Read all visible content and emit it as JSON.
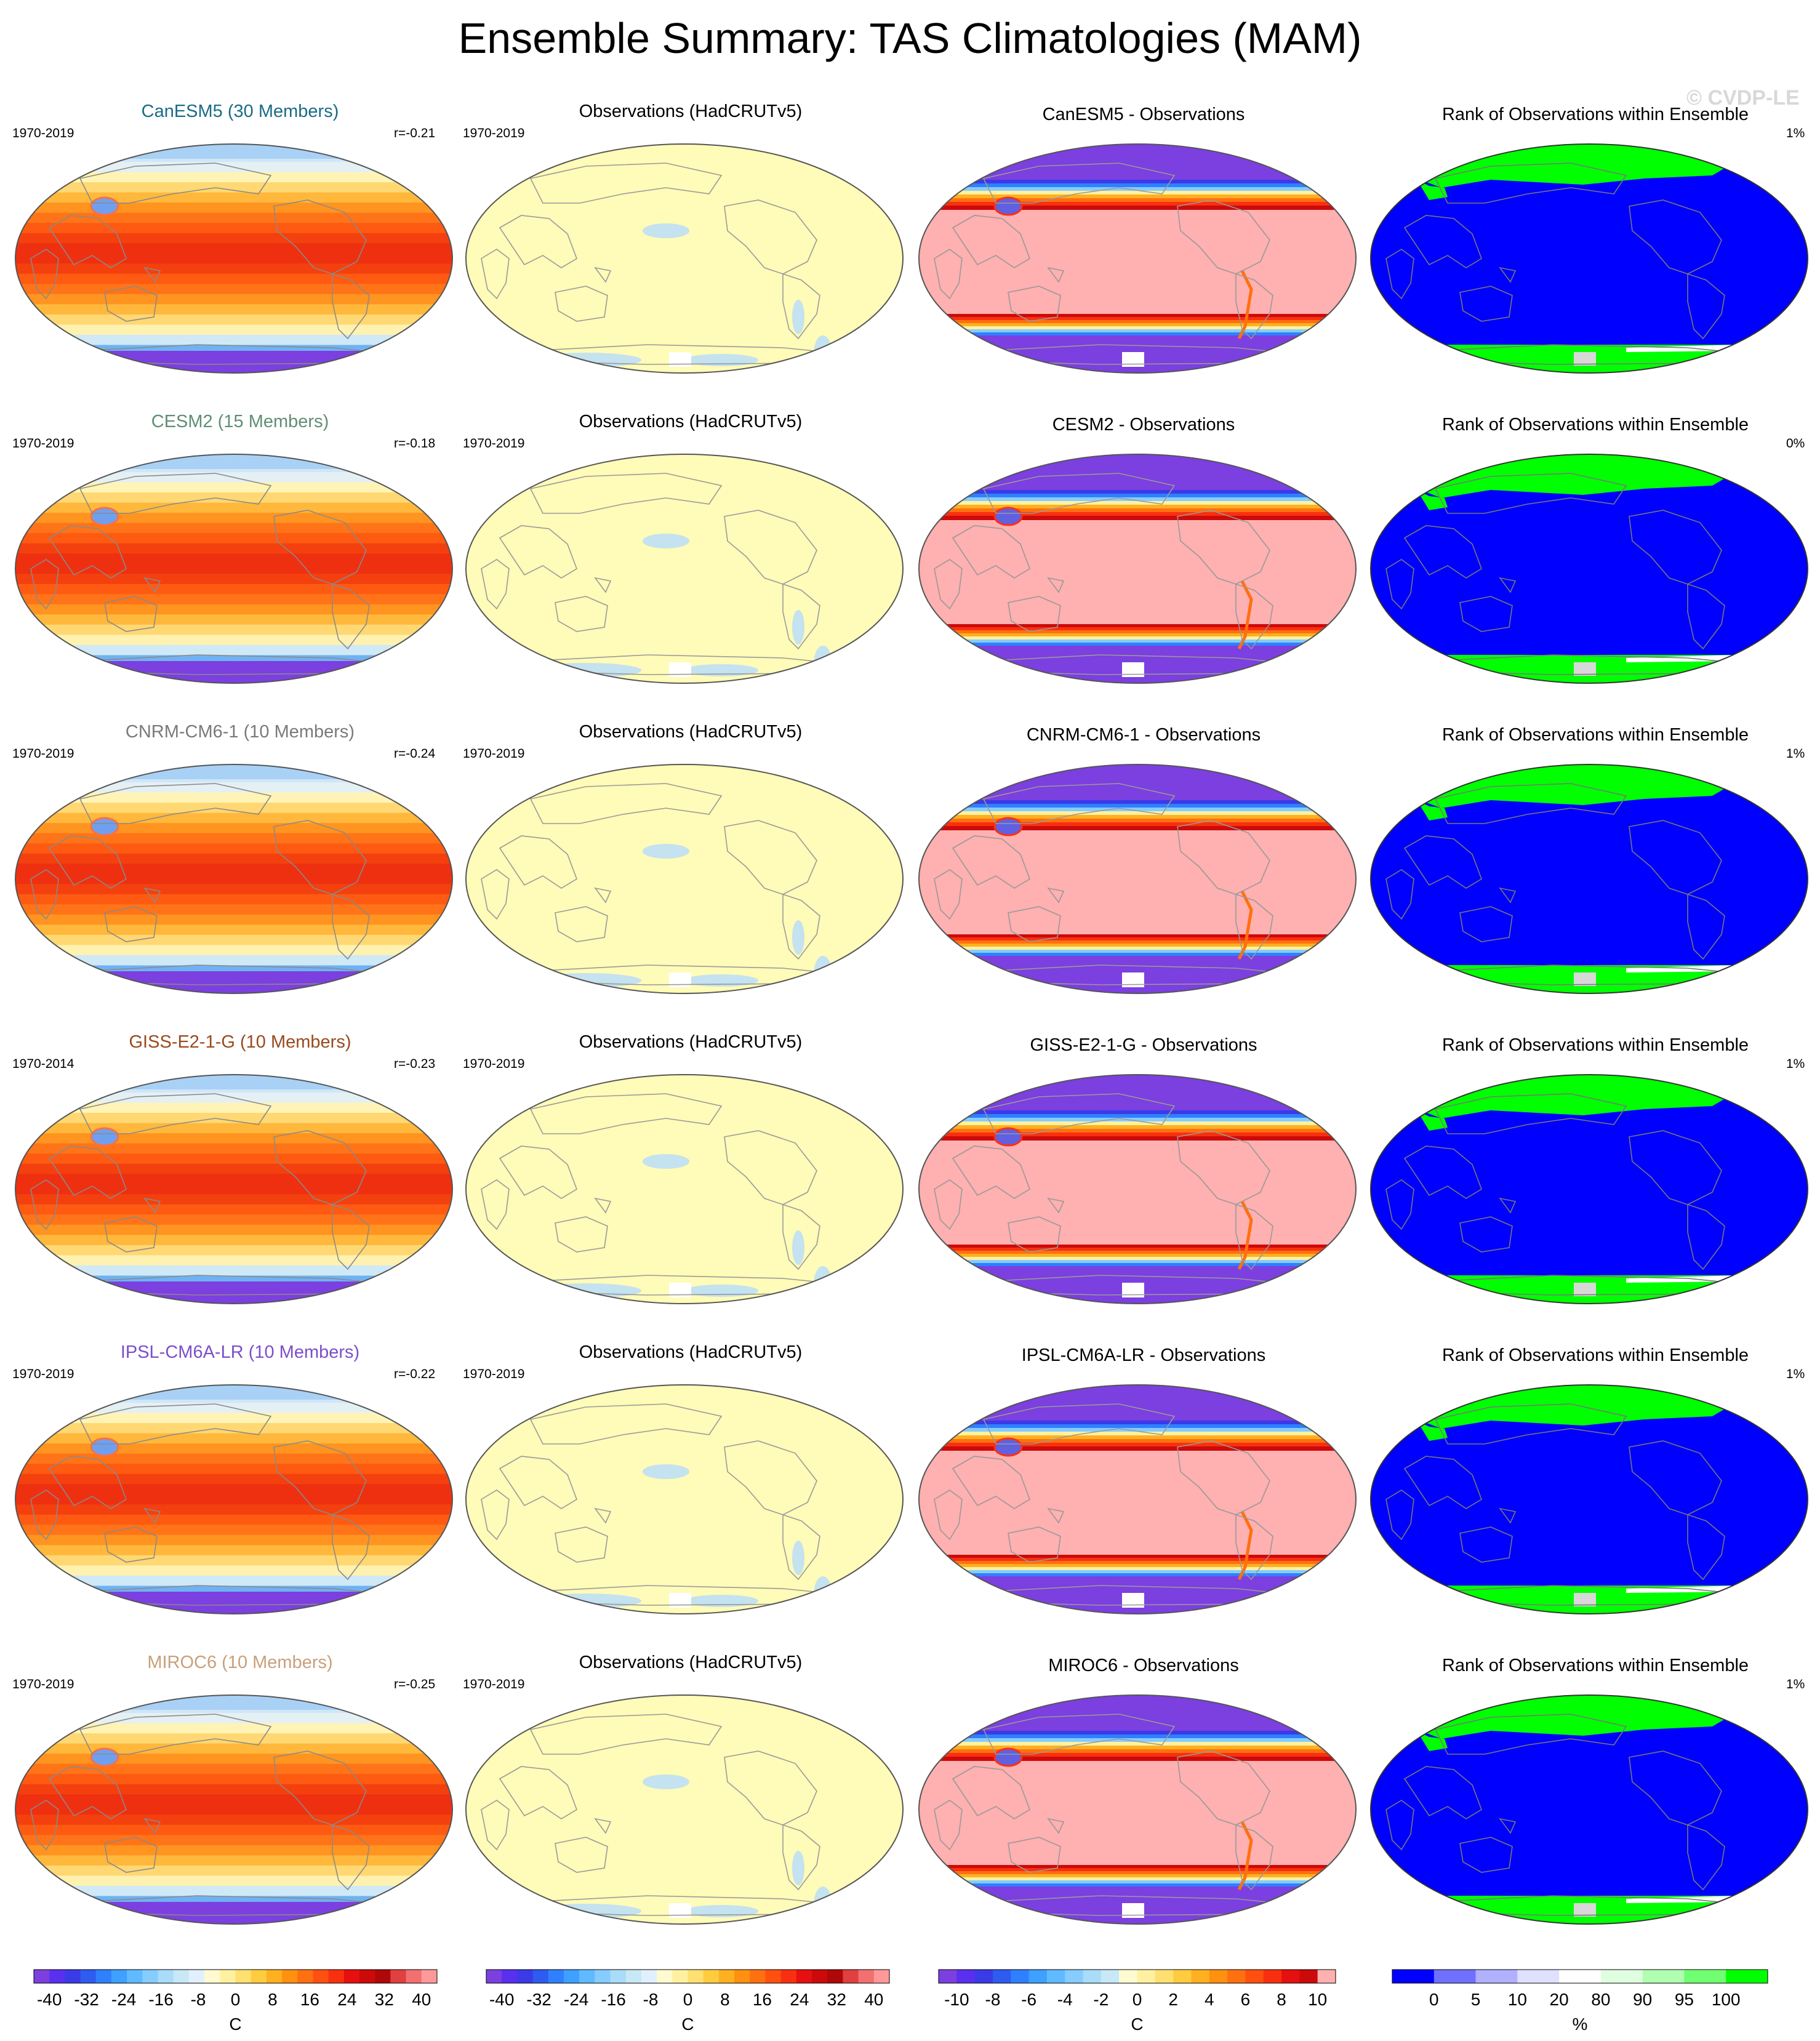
{
  "title": "Ensemble Summary: TAS Climatologies (MAM)",
  "watermark": "© CVDP-LE",
  "columns": {
    "obs_title": "Observations (HadCRUTv5)",
    "diff_suffix": " - Observations",
    "rank_title": "Rank of Observations within Ensemble"
  },
  "rows": [
    {
      "model_title": "CanESM5 (30 Members)",
      "title_color": "#1a6b87",
      "model_years": "1970-2019",
      "r": "r=-0.21",
      "obs_years": "1970-2019",
      "diff_title": "CanESM5 - Observations",
      "rank_pct": "1%"
    },
    {
      "model_title": "CESM2 (15 Members)",
      "title_color": "#5f8e74",
      "model_years": "1970-2019",
      "r": "r=-0.18",
      "obs_years": "1970-2019",
      "diff_title": "CESM2 - Observations",
      "rank_pct": "0%"
    },
    {
      "model_title": "CNRM-CM6-1 (10 Members)",
      "title_color": "#7a7a7a",
      "model_years": "1970-2019",
      "r": "r=-0.24",
      "obs_years": "1970-2019",
      "diff_title": "CNRM-CM6-1 - Observations",
      "rank_pct": "1%"
    },
    {
      "model_title": "GISS-E2-1-G (10 Members)",
      "title_color": "#9a4a1c",
      "model_years": "1970-2014",
      "r": "r=-0.23",
      "obs_years": "1970-2019",
      "diff_title": "GISS-E2-1-G - Observations",
      "rank_pct": "1%"
    },
    {
      "model_title": "IPSL-CM6A-LR (10 Members)",
      "title_color": "#7b4fc9",
      "model_years": "1970-2019",
      "r": "r=-0.22",
      "obs_years": "1970-2019",
      "diff_title": "IPSL-CM6A-LR - Observations",
      "rank_pct": "1%"
    },
    {
      "model_title": "MIROC6 (10 Members)",
      "title_color": "#c9a07a",
      "model_years": "1970-2019",
      "r": "r=-0.25",
      "obs_years": "1970-2019",
      "diff_title": "MIROC6 - Observations",
      "rank_pct": "1%"
    }
  ],
  "chart_data": [
    {
      "type": "heatmap",
      "panel": "model climatology",
      "colorbar": {
        "unit": "C",
        "range": [
          -40,
          40
        ],
        "tick_labels": [
          "-40",
          "-32",
          "-24",
          "-16",
          "-8",
          "0",
          "8",
          "16",
          "24",
          "32",
          "40"
        ],
        "colors": [
          "#7c3fe0",
          "#5a2ff0",
          "#3a3ae8",
          "#2e5bf0",
          "#2f80ff",
          "#3ea0ff",
          "#60baff",
          "#86ccff",
          "#a8dcf8",
          "#c8e8f6",
          "#e0f0ff",
          "#fffbd0",
          "#fff1a0",
          "#ffe070",
          "#ffcc40",
          "#ffb020",
          "#ff9010",
          "#ff7010",
          "#ff5010",
          "#f83010",
          "#e61010",
          "#cc0a0a",
          "#b00808",
          "#e04040",
          "#f27070",
          "#ff9999"
        ]
      },
      "projection": "Robinson (Pacific-centered)",
      "description_values": {
        "tropics": "about 24 to 32 C",
        "polar": "below -24 C"
      }
    },
    {
      "type": "heatmap",
      "panel": "observations",
      "colorbar": {
        "unit": "C",
        "range": [
          -40,
          40
        ],
        "tick_labels": [
          "-40",
          "-32",
          "-24",
          "-16",
          "-8",
          "0",
          "8",
          "16",
          "24",
          "32",
          "40"
        ]
      }
    },
    {
      "type": "heatmap",
      "panel": "model minus observations",
      "colorbar": {
        "unit": "C",
        "range": [
          -10,
          10
        ],
        "tick_labels": [
          "-10",
          "-8",
          "-6",
          "-4",
          "-2",
          "0",
          "2",
          "4",
          "6",
          "8",
          "10"
        ],
        "colors": [
          "#7c3fe0",
          "#5a2ff0",
          "#3a3ae8",
          "#2e5bf0",
          "#2f80ff",
          "#3ea0ff",
          "#60baff",
          "#86ccff",
          "#a8dcf8",
          "#c8e8f6",
          "#fffbd0",
          "#fff1a0",
          "#ffe070",
          "#ffcc40",
          "#ffb020",
          "#ff9010",
          "#ff7010",
          "#ff5010",
          "#f83010",
          "#e61010",
          "#cc0a0a",
          "#ffb0b0"
        ]
      }
    },
    {
      "type": "heatmap",
      "panel": "rank of observations within ensemble",
      "colorbar": {
        "unit": "%",
        "levels": [
          0,
          5,
          10,
          20,
          80,
          90,
          95,
          100
        ],
        "tick_labels": [
          "0",
          "5",
          "10",
          "20",
          "80",
          "90",
          "95",
          "100"
        ],
        "colors": [
          "#0000ff",
          "#7070ff",
          "#b0b0ff",
          "#e0e0ff",
          "#ffffff",
          "#e0ffe0",
          "#b0ffb0",
          "#70ff70",
          "#00ff00"
        ]
      }
    }
  ]
}
